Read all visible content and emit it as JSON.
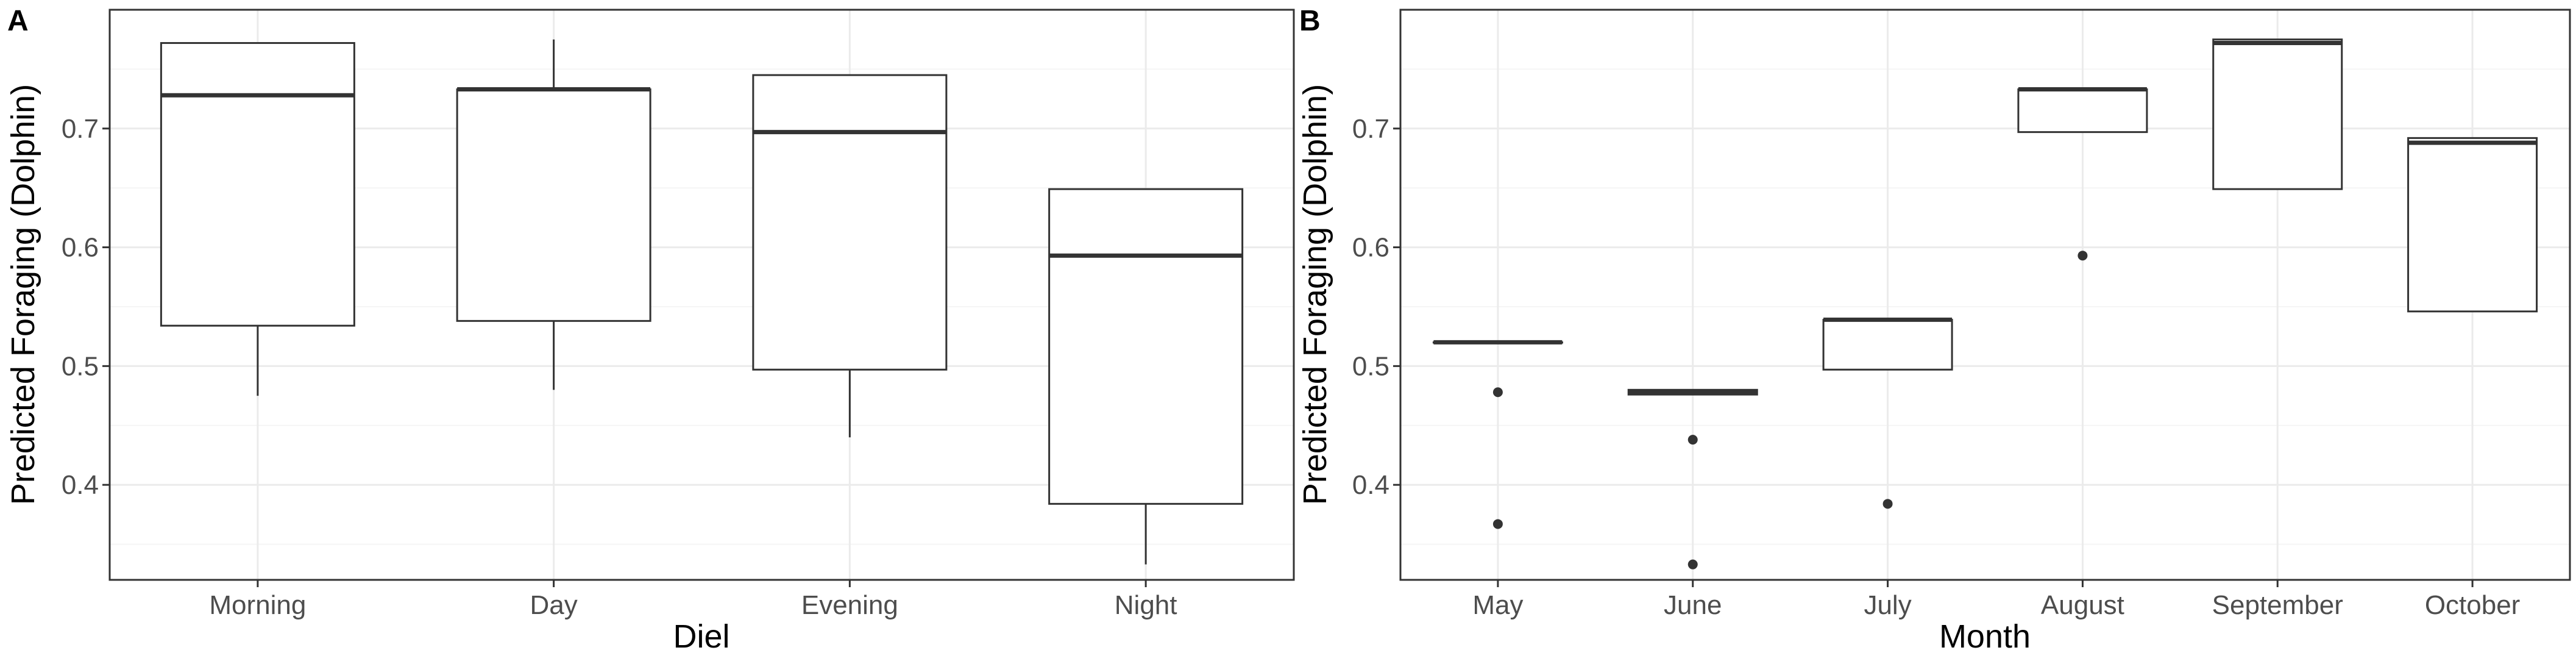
{
  "colors": {
    "background": "#ffffff",
    "grid_major": "#ebebeb",
    "grid_minor": "#f5f5f5",
    "panel_border": "#333333",
    "box_line": "#333333",
    "tick_text": "#4d4d4d"
  },
  "chart_data": [
    {
      "type": "box",
      "panel_label": "A",
      "title": "",
      "xlabel": "Diel",
      "ylabel": "Predicted Foraging (Dolphin)",
      "ylim": [
        0.32,
        0.8
      ],
      "yticks": [
        "0.4",
        "0.5",
        "0.6",
        "0.7"
      ],
      "ytick_values": [
        0.4,
        0.5,
        0.6,
        0.7
      ],
      "grid": true,
      "categories": [
        "Morning",
        "Day",
        "Evening",
        "Night"
      ],
      "boxes": [
        {
          "category": "Morning",
          "whisker_low": 0.475,
          "q1": 0.534,
          "median": 0.728,
          "q3": 0.772,
          "whisker_high": 0.772,
          "outliers": []
        },
        {
          "category": "Day",
          "whisker_low": 0.48,
          "q1": 0.538,
          "median": 0.733,
          "q3": 0.733,
          "whisker_high": 0.775,
          "outliers": []
        },
        {
          "category": "Evening",
          "whisker_low": 0.44,
          "q1": 0.497,
          "median": 0.697,
          "q3": 0.745,
          "whisker_high": 0.745,
          "outliers": []
        },
        {
          "category": "Night",
          "whisker_low": 0.333,
          "q1": 0.384,
          "median": 0.593,
          "q3": 0.649,
          "whisker_high": 0.649,
          "outliers": []
        }
      ]
    },
    {
      "type": "box",
      "panel_label": "B",
      "title": "",
      "xlabel": "Month",
      "ylabel": "Predicted Foraging (Dolphin)",
      "ylim": [
        0.32,
        0.8
      ],
      "yticks": [
        "0.4",
        "0.5",
        "0.6",
        "0.7"
      ],
      "ytick_values": [
        0.4,
        0.5,
        0.6,
        0.7
      ],
      "grid": true,
      "categories": [
        "May",
        "June",
        "July",
        "August",
        "September",
        "October"
      ],
      "boxes": [
        {
          "category": "May",
          "whisker_low": 0.52,
          "q1": 0.52,
          "median": 0.52,
          "q3": 0.52,
          "whisker_high": 0.52,
          "outliers": [
            0.478,
            0.367
          ]
        },
        {
          "category": "June",
          "whisker_low": 0.476,
          "q1": 0.476,
          "median": 0.478,
          "q3": 0.48,
          "whisker_high": 0.48,
          "outliers": [
            0.438,
            0.333
          ]
        },
        {
          "category": "July",
          "whisker_low": 0.497,
          "q1": 0.497,
          "median": 0.539,
          "q3": 0.539,
          "whisker_high": 0.539,
          "outliers": [
            0.384
          ]
        },
        {
          "category": "August",
          "whisker_low": 0.697,
          "q1": 0.697,
          "median": 0.733,
          "q3": 0.733,
          "whisker_high": 0.733,
          "outliers": [
            0.593
          ]
        },
        {
          "category": "September",
          "whisker_low": 0.649,
          "q1": 0.649,
          "median": 0.772,
          "q3": 0.775,
          "whisker_high": 0.775,
          "outliers": []
        },
        {
          "category": "October",
          "whisker_low": 0.546,
          "q1": 0.546,
          "median": 0.688,
          "q3": 0.692,
          "whisker_high": 0.692,
          "outliers": []
        }
      ]
    }
  ]
}
